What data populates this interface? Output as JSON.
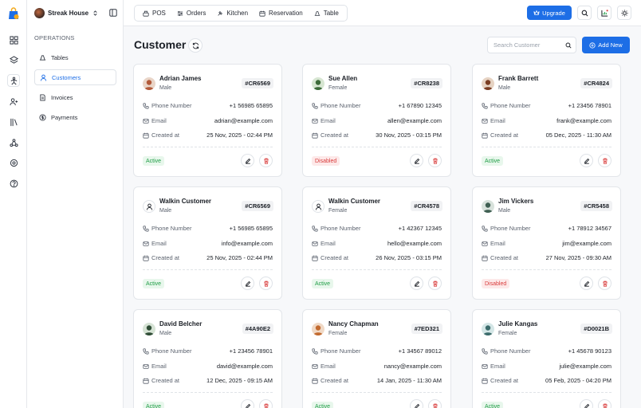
{
  "sidebar": {
    "brand_name": "Streak House",
    "section_label": "OPERATIONS",
    "items": [
      {
        "label": "Tables",
        "icon": "table-icon"
      },
      {
        "label": "Customers",
        "icon": "user-icon"
      },
      {
        "label": "Invoices",
        "icon": "invoice-icon"
      },
      {
        "label": "Payments",
        "icon": "payment-icon"
      }
    ]
  },
  "topbar": {
    "tabs": [
      {
        "label": "POS"
      },
      {
        "label": "Orders"
      },
      {
        "label": "Kitchen"
      },
      {
        "label": "Reservation"
      },
      {
        "label": "Table"
      }
    ],
    "upgrade_label": "Upgrade"
  },
  "page": {
    "title": "Customer",
    "search_placeholder": "Search Customer",
    "add_label": "Add New"
  },
  "labels": {
    "phone": "Phone Number",
    "email": "Email",
    "created": "Created at"
  },
  "colors": {
    "accent": "#1d6ee6",
    "active": "#1f9d45",
    "disabled": "#d93c3c"
  },
  "customers": [
    {
      "name": "Adrian James",
      "gender": "Male",
      "id": "#CR6569",
      "phone": "+1 56985 65895",
      "email": "adrian@example.com",
      "created": "25 Nov, 2025 - 02:44 PM",
      "status": "Active"
    },
    {
      "name": "Sue Allen",
      "gender": "Female",
      "id": "#CR8238",
      "phone": "+1 67890 12345",
      "email": "allen@example.com",
      "created": "30 Nov, 2025 - 03:15 PM",
      "status": "Disabled"
    },
    {
      "name": "Frank Barrett",
      "gender": "Male",
      "id": "#CR4824",
      "phone": "+1 23456 78901",
      "email": "frank@example.com",
      "created": "05 Dec, 2025 - 11:30 AM",
      "status": "Active"
    },
    {
      "name": "Walkin Customer",
      "gender": "Male",
      "id": "#CR6569",
      "phone": "+1 56985 65895",
      "email": "info@example.com",
      "created": "25 Nov, 2025 - 02:44 PM",
      "status": "Active"
    },
    {
      "name": "Walkin Customer",
      "gender": "Female",
      "id": "#CR4578",
      "phone": "+1 42367 12345",
      "email": "hello@example.com",
      "created": "26 Nov, 2025 - 03:15 PM",
      "status": "Active"
    },
    {
      "name": "Jim Vickers",
      "gender": "Male",
      "id": "#CR5458",
      "phone": "+1 78912 34567",
      "email": "jim@example.com",
      "created": "27 Nov, 2025 - 09:30 AM",
      "status": "Disabled"
    },
    {
      "name": "David Belcher",
      "gender": "Male",
      "id": "#4A90E2",
      "phone": "+1 23456 78901",
      "email": "david@example.com",
      "created": "12 Dec, 2025 - 09:15 AM",
      "status": "Active"
    },
    {
      "name": "Nancy Chapman",
      "gender": "Female",
      "id": "#7ED321",
      "phone": "+1 34567 89012",
      "email": "nancy@example.com",
      "created": "14 Jan, 2025 - 11:30 AM",
      "status": "Active"
    },
    {
      "name": "Julie Kangas",
      "gender": "Female",
      "id": "#D0021B",
      "phone": "+1 45678 90123",
      "email": "julie@example.com",
      "created": "05 Feb, 2025 - 04:20 PM",
      "status": "Active"
    }
  ]
}
